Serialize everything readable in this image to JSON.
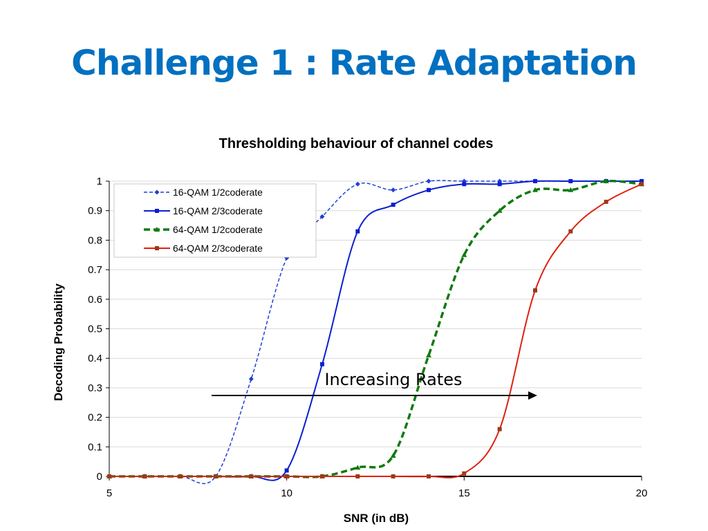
{
  "slide": {
    "title": "Challenge 1 : Rate Adaptation"
  },
  "annotation": {
    "text": "Increasing Rates"
  },
  "chart_data": {
    "type": "line",
    "title": "Thresholding behaviour of channel codes",
    "xlabel": "SNR (in dB)",
    "ylabel": "Decoding Probability",
    "xlim": [
      5,
      20
    ],
    "ylim": [
      0,
      1
    ],
    "xticks": [
      5,
      10,
      15,
      20
    ],
    "yticks": [
      0,
      0.1,
      0.2,
      0.3,
      0.4,
      0.5,
      0.6,
      0.7,
      0.8,
      0.9,
      1
    ],
    "grid": "horizontal",
    "legend_position": "top-left",
    "series": [
      {
        "name": "16-QAM 1/2coderate",
        "color": "#1f3fd8",
        "line_style": "dashed",
        "marker": "diamond",
        "x": [
          5,
          6,
          7,
          8,
          9,
          10,
          11,
          12,
          13,
          14,
          15,
          16,
          17,
          18,
          19,
          20
        ],
        "values": [
          0,
          0,
          0,
          0,
          0.33,
          0.74,
          0.88,
          0.99,
          0.97,
          1,
          1,
          1,
          1,
          1,
          1,
          1
        ]
      },
      {
        "name": "16-QAM 2/3coderate",
        "color": "#0a1fd0",
        "line_style": "solid",
        "marker": "square",
        "x": [
          5,
          6,
          7,
          8,
          9,
          10,
          11,
          12,
          13,
          14,
          15,
          16,
          17,
          18,
          19,
          20
        ],
        "values": [
          0,
          0,
          0,
          0,
          0,
          0.02,
          0.38,
          0.83,
          0.92,
          0.97,
          0.99,
          0.99,
          1,
          1,
          1,
          1
        ]
      },
      {
        "name": "64-QAM 1/2coderate",
        "color": "#0e7a0e",
        "line_style": "dashed-thick",
        "marker": "triangle",
        "x": [
          5,
          6,
          7,
          8,
          9,
          10,
          11,
          12,
          13,
          14,
          15,
          16,
          17,
          18,
          19,
          20
        ],
        "values": [
          0,
          0,
          0,
          0,
          0,
          0,
          0,
          0.03,
          0.07,
          0.41,
          0.75,
          0.9,
          0.97,
          0.97,
          1,
          0.99
        ]
      },
      {
        "name": "64-QAM 2/3coderate",
        "color": "#e02010",
        "line_style": "solid",
        "marker": "square",
        "marker_color": "#9a3a1a",
        "x": [
          5,
          6,
          7,
          8,
          9,
          10,
          11,
          12,
          13,
          14,
          15,
          16,
          17,
          18,
          19,
          20
        ],
        "values": [
          0,
          0,
          0,
          0,
          0,
          0,
          0,
          0,
          0,
          0,
          0.01,
          0.16,
          0.63,
          0.83,
          0.93,
          0.99
        ]
      }
    ]
  }
}
